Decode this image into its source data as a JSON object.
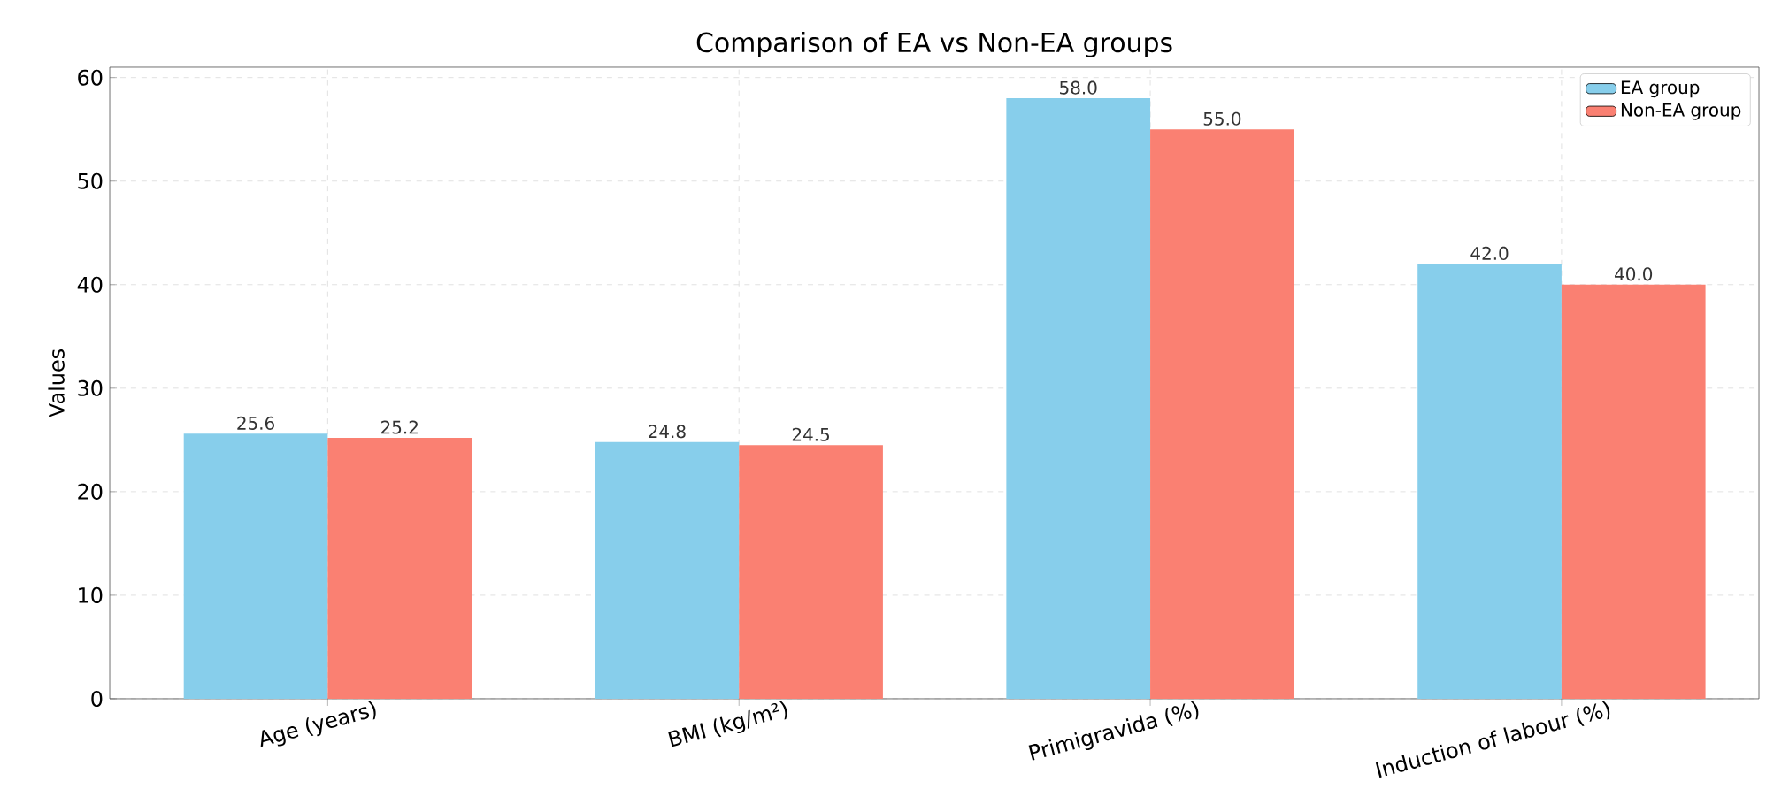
{
  "chart_data": {
    "type": "bar",
    "title": "Comparison of EA vs Non-EA groups",
    "ylabel": "Values",
    "categories": [
      "Age (years)",
      "BMI (kg/m²)",
      "Primigravida (%)",
      "Induction of labour (%)"
    ],
    "series": [
      {
        "name": "EA group",
        "color": "#87ceeb",
        "values": [
          25.6,
          24.8,
          58.0,
          42.0
        ],
        "value_labels": [
          "25.6",
          "24.8",
          "58.0",
          "42.0"
        ]
      },
      {
        "name": "Non-EA group",
        "color": "#fa8072",
        "values": [
          25.2,
          24.5,
          55.0,
          40.0
        ],
        "value_labels": [
          "25.2",
          "24.5",
          "55.0",
          "40.0"
        ]
      }
    ],
    "ylim": [
      0,
      61
    ],
    "yticks": [
      0,
      10,
      20,
      30,
      40,
      50,
      60
    ],
    "grid": true,
    "legend": "top right"
  }
}
